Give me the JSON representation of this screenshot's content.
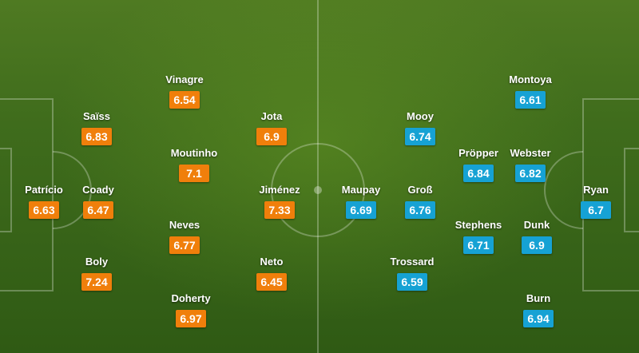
{
  "colors": {
    "home": "#f07f0b",
    "away": "#16a2d4",
    "pitch": "#3f6c1c"
  },
  "home": [
    {
      "name": "Patrício",
      "rating": "6.63"
    },
    {
      "name": "Saïss",
      "rating": "6.83"
    },
    {
      "name": "Coady",
      "rating": "6.47"
    },
    {
      "name": "Boly",
      "rating": "7.24"
    },
    {
      "name": "Vinagre",
      "rating": "6.54"
    },
    {
      "name": "Moutinho",
      "rating": "7.1"
    },
    {
      "name": "Neves",
      "rating": "6.77"
    },
    {
      "name": "Doherty",
      "rating": "6.97"
    },
    {
      "name": "Jota",
      "rating": "6.9"
    },
    {
      "name": "Jiménez",
      "rating": "7.33"
    },
    {
      "name": "Neto",
      "rating": "6.45"
    }
  ],
  "away": [
    {
      "name": "Ryan",
      "rating": "6.7"
    },
    {
      "name": "Montoya",
      "rating": "6.61"
    },
    {
      "name": "Webster",
      "rating": "6.82"
    },
    {
      "name": "Dunk",
      "rating": "6.9"
    },
    {
      "name": "Burn",
      "rating": "6.94"
    },
    {
      "name": "Pröpper",
      "rating": "6.84"
    },
    {
      "name": "Stephens",
      "rating": "6.71"
    },
    {
      "name": "Mooy",
      "rating": "6.74"
    },
    {
      "name": "Groß",
      "rating": "6.76"
    },
    {
      "name": "Trossard",
      "rating": "6.59"
    },
    {
      "name": "Maupay",
      "rating": "6.69"
    }
  ]
}
